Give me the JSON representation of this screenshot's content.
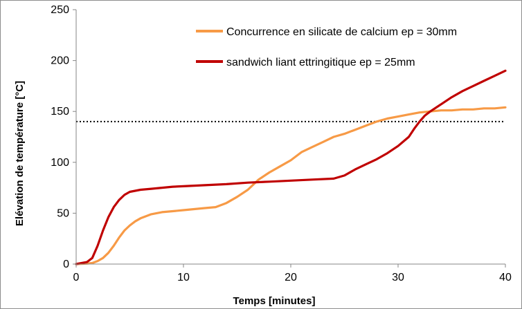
{
  "chart_data": {
    "type": "line",
    "title": "",
    "xlabel": "Temps [minutes]",
    "ylabel": "Elévation de température [°C]",
    "xlim": [
      0,
      40
    ],
    "ylim": [
      0,
      250
    ],
    "xticks": [
      0,
      10,
      20,
      30,
      40
    ],
    "yticks": [
      0,
      50,
      100,
      150,
      200,
      250
    ],
    "grid": false,
    "legend_position": "top-right",
    "reference_line": {
      "y": 140,
      "style": "dotted",
      "color": "#000000"
    },
    "series": [
      {
        "name": "Concurrence en silicate de calcium ep = 30mm",
        "color": "#F79A46",
        "x": [
          0,
          1,
          1.5,
          2,
          2.5,
          3,
          3.5,
          4,
          4.5,
          5,
          5.5,
          6,
          7,
          8,
          9,
          10,
          11,
          12,
          13,
          14,
          15,
          16,
          17,
          18,
          19,
          20,
          21,
          22,
          23,
          24,
          25,
          26,
          27,
          28,
          29,
          30,
          31,
          32,
          33,
          34,
          35,
          36,
          37,
          38,
          39,
          40
        ],
        "y": [
          0,
          0.5,
          1,
          3,
          6,
          11,
          18,
          26,
          33,
          38,
          42,
          45,
          49,
          51,
          52,
          53,
          54,
          55,
          56,
          60,
          66,
          73,
          83,
          90,
          96,
          102,
          110,
          115,
          120,
          125,
          128,
          132,
          136,
          140,
          143,
          145,
          147,
          149,
          150,
          151,
          151,
          152,
          152,
          153,
          153,
          154
        ]
      },
      {
        "name": "sandwich liant ettringitique ep = 25mm",
        "color": "#C00000",
        "x": [
          0,
          1,
          1.5,
          2,
          2.5,
          3,
          3.5,
          4,
          4.5,
          5,
          5.5,
          6,
          7,
          8,
          9,
          10,
          12,
          14,
          16,
          18,
          20,
          22,
          24,
          25,
          26,
          27,
          28,
          29,
          30,
          31,
          31.5,
          32,
          32.5,
          33,
          34,
          35,
          36,
          37,
          38,
          39,
          40
        ],
        "y": [
          0,
          2,
          6,
          18,
          33,
          46,
          56,
          63,
          68,
          71,
          72,
          73,
          74,
          75,
          76,
          76.5,
          77.5,
          78.5,
          80,
          81,
          82,
          83,
          84,
          87,
          93,
          98,
          103,
          109,
          116,
          125,
          133,
          140,
          146,
          150,
          157,
          164,
          170,
          175,
          180,
          185,
          190
        ]
      }
    ]
  }
}
